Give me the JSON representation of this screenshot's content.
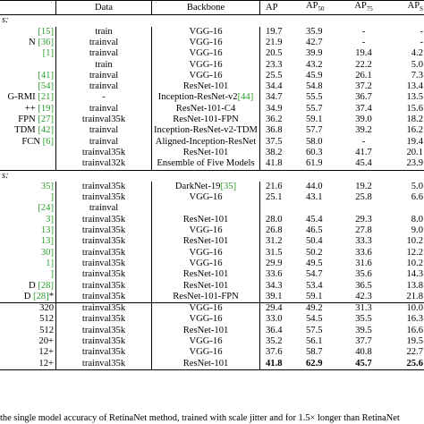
{
  "table": {
    "headers": {
      "data": "Data",
      "backbone": "Backbone",
      "ap": "AP",
      "ap50": "AP",
      "ap50_sub": "50",
      "ap75": "AP",
      "ap75_sub": "75",
      "aps": "AP",
      "aps_sub": "S"
    },
    "section_two_stage": "s:",
    "section_one_stage": "s:",
    "two_stage_rows": [
      {
        "method": "",
        "cite": "[15]",
        "data": "train",
        "backbone": "VGG-16",
        "ap": "19.7",
        "ap50": "35.9",
        "ap75": "-",
        "aps": "-"
      },
      {
        "method": "N ",
        "cite": "[36]",
        "data": "trainval",
        "backbone": "VGG-16",
        "ap": "21.9",
        "ap50": "42.7",
        "ap75": "-",
        "aps": "-"
      },
      {
        "method": "",
        "cite": "[1]",
        "data": "trainval",
        "backbone": "VGG-16",
        "ap": "20.5",
        "ap50": "39.9",
        "ap75": "19.4",
        "aps": "4.2"
      },
      {
        "method": "",
        "cite": "",
        "data": "train",
        "backbone": "VGG-16",
        "ap": "23.3",
        "ap50": "43.2",
        "ap75": "22.2",
        "aps": "5.0"
      },
      {
        "method": "",
        "cite": "[41]",
        "data": "trainval",
        "backbone": "VGG-16",
        "ap": "25.5",
        "ap50": "45.9",
        "ap75": "26.1",
        "aps": "7.3"
      },
      {
        "method": "",
        "cite": "[54]",
        "data": "trainval",
        "backbone": "ResNet-101",
        "ap": "34.4",
        "ap50": "54.8",
        "ap75": "37.2",
        "aps": "13.4"
      },
      {
        "method": "G-RMI ",
        "cite": "[21]",
        "data": "-",
        "backbone": "Inception-ResNet-v2",
        "backbone_cite": "[44]",
        "ap": "34.7",
        "ap50": "55.5",
        "ap75": "36.7",
        "aps": "13.5"
      },
      {
        "method": "++ ",
        "cite": "[19]",
        "data": "trainval",
        "backbone": "ResNet-101-C4",
        "ap": "34.9",
        "ap50": "55.7",
        "ap75": "37.4",
        "aps": "15.6"
      },
      {
        "method": "FPN ",
        "cite": "[27]",
        "data": "trainval35k",
        "backbone": "ResNet-101-FPN",
        "ap": "36.2",
        "ap50": "59.1",
        "ap75": "39.0",
        "aps": "18.2"
      },
      {
        "method": "TDM ",
        "cite": "[42]",
        "data": "trainval",
        "backbone": "Inception-ResNet-v2-TDM",
        "ap": "36.8",
        "ap50": "57.7",
        "ap75": "39.2",
        "aps": "16.2"
      },
      {
        "method": "FCN ",
        "cite": "[6]",
        "data": "trainval",
        "backbone": "Aligned-Inception-ResNet",
        "ap": "37.5",
        "ap50": "58.0",
        "ap75": "-",
        "aps": "19.4"
      },
      {
        "method": "",
        "cite": "",
        "data": "trainval35k",
        "backbone": "ResNet-101",
        "ap": "38.2",
        "ap50": "60.3",
        "ap75": "41.7",
        "aps": "20.1"
      },
      {
        "method": "",
        "cite": "",
        "data": "trainval32k",
        "backbone": "Ensemble of Five Models",
        "ap": "41.8",
        "ap50": "61.9",
        "ap75": "45.4",
        "aps": "23.9"
      }
    ],
    "one_stage_rows": [
      {
        "method": "",
        "cite": "35]",
        "data": "trainval35k",
        "backbone": "DarkNet-19",
        "backbone_cite": "[35]",
        "ap": "21.6",
        "ap50": "44.0",
        "ap75": "19.2",
        "aps": "5.0"
      },
      {
        "method": "",
        "cite": "]",
        "data": "trainval35k",
        "backbone": "VGG-16",
        "ap": "25.1",
        "ap50": "43.1",
        "ap75": "25.8",
        "aps": "6.6"
      },
      {
        "method": "",
        "cite": "[24]",
        "data": "trainval",
        "backbone": "",
        "ap": "",
        "ap50": "",
        "ap75": "",
        "aps": ""
      },
      {
        "method": "",
        "cite": "3]",
        "data": "trainval35k",
        "backbone": "ResNet-101",
        "ap": "28.0",
        "ap50": "45.4",
        "ap75": "29.3",
        "aps": "8.0"
      },
      {
        "method": "",
        "cite": "13]",
        "data": "trainval35k",
        "backbone": "VGG-16",
        "ap": "26.8",
        "ap50": "46.5",
        "ap75": "27.8",
        "aps": "9.0"
      },
      {
        "method": "",
        "cite": "13]",
        "data": "trainval35k",
        "backbone": "ResNet-101",
        "ap": "31.2",
        "ap50": "50.4",
        "ap75": "33.3",
        "aps": "10.2"
      },
      {
        "method": "",
        "cite": "30]",
        "data": "trainval35k",
        "backbone": "VGG-16",
        "ap": "31.5",
        "ap50": "50.2",
        "ap75": "33.6",
        "aps": "12.2"
      },
      {
        "method": "",
        "cite": "1]",
        "data": "trainval35k",
        "backbone": "VGG-16",
        "ap": "29.9",
        "ap50": "49.5",
        "ap75": "31.6",
        "aps": "10.2"
      },
      {
        "method": "",
        "cite": "]",
        "data": "trainval35k",
        "backbone": "ResNet-101",
        "ap": "33.6",
        "ap50": "54.7",
        "ap75": "35.6",
        "aps": "14.3"
      },
      {
        "method": "D ",
        "cite": "[28]",
        "data": "trainval35k",
        "backbone": "ResNet-101",
        "ap": "34.3",
        "ap50": "53.4",
        "ap75": "36.5",
        "aps": "13.8"
      },
      {
        "method": "D ",
        "cite": "[28]",
        "suffix": "*",
        "data": "trainval35k",
        "backbone": "ResNet-101-FPN",
        "ap": "39.1",
        "ap50": "59.1",
        "ap75": "42.3",
        "aps": "21.8"
      }
    ],
    "refinedet_rows": [
      {
        "method": "320",
        "data": "trainval35k",
        "backbone": "VGG-16",
        "ap": "29.4",
        "ap50": "49.2",
        "ap75": "31.3",
        "aps": "10.0",
        "bold": []
      },
      {
        "method": "512",
        "data": "trainval35k",
        "backbone": "VGG-16",
        "ap": "33.0",
        "ap50": "54.5",
        "ap75": "35.5",
        "aps": "16.3",
        "bold": []
      },
      {
        "method": "512",
        "data": "trainval35k",
        "backbone": "ResNet-101",
        "ap": "36.4",
        "ap50": "57.5",
        "ap75": "39.5",
        "aps": "16.6",
        "bold": []
      },
      {
        "method": "20+",
        "data": "trainval35k",
        "backbone": "VGG-16",
        "ap": "35.2",
        "ap50": "56.1",
        "ap75": "37.7",
        "aps": "19.5",
        "bold": []
      },
      {
        "method": "12+",
        "data": "trainval35k",
        "backbone": "VGG-16",
        "ap": "37.6",
        "ap50": "58.7",
        "ap75": "40.8",
        "aps": "22.7",
        "bold": []
      },
      {
        "method": "12+",
        "data": "trainval35k",
        "backbone": "ResNet-101",
        "ap": "41.8",
        "ap50": "62.9",
        "ap75": "45.7",
        "aps": "25.6",
        "bold": [
          "ap",
          "ap50",
          "ap75",
          "aps"
        ]
      }
    ]
  },
  "caption": "the single model accuracy of RetinaNet method, trained with scale jitter and for 1.5× longer than RetinaNet",
  "colors": {
    "citation": "#2a9d2a"
  }
}
